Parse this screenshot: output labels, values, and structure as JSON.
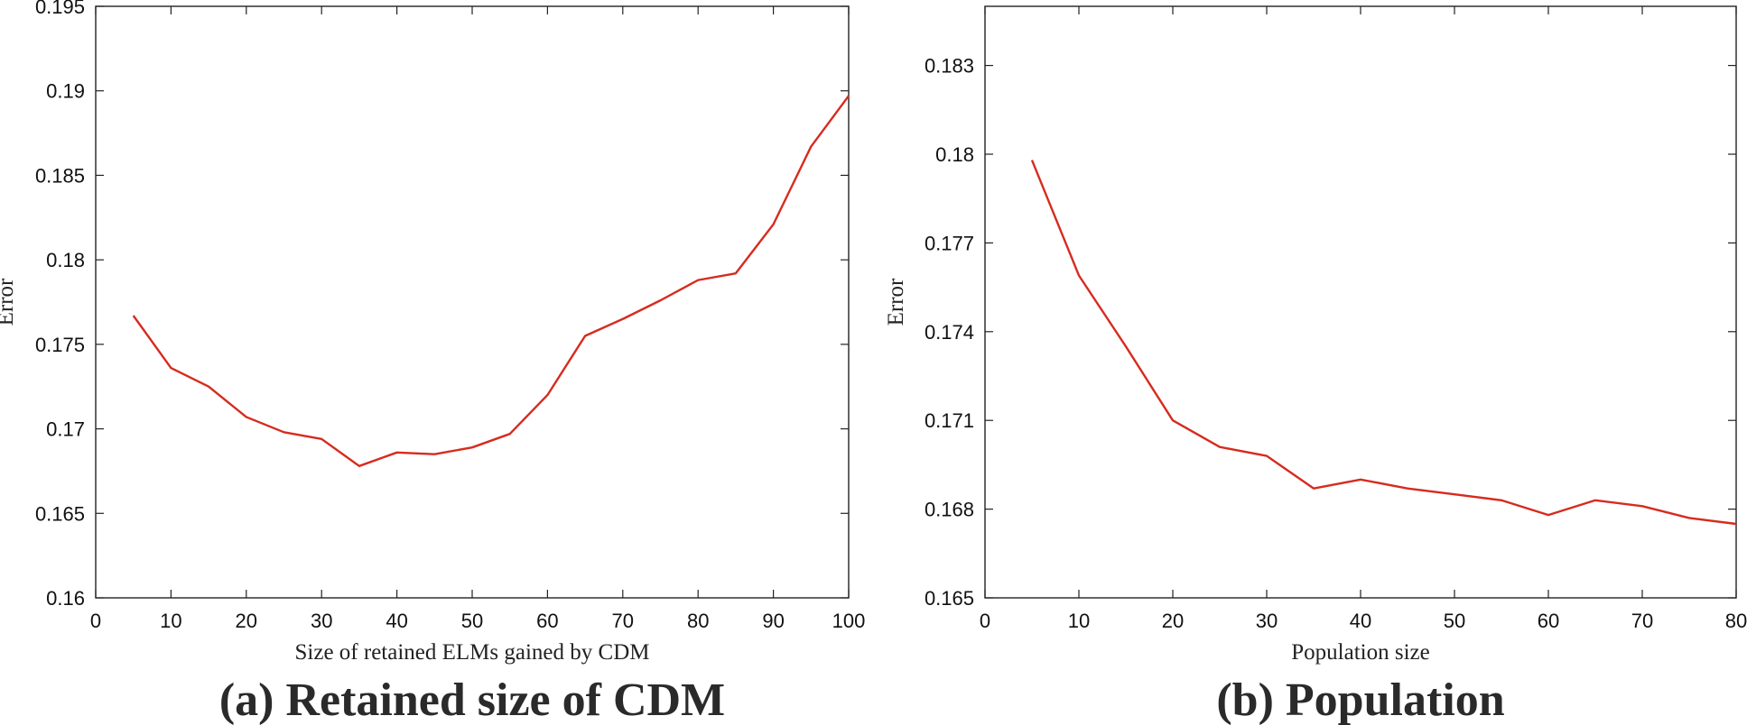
{
  "chart_data": [
    {
      "type": "line",
      "caption": "(a) Retained size of CDM",
      "xlabel": "Size of retained ELMs gained by CDM",
      "ylabel": "Error",
      "xlim": [
        0,
        100
      ],
      "ylim": [
        0.16,
        0.195
      ],
      "xticks": [
        0,
        10,
        20,
        30,
        40,
        50,
        60,
        70,
        80,
        90,
        100
      ],
      "xtick_labels": [
        "0",
        "10",
        "20",
        "30",
        "40",
        "50",
        "60",
        "70",
        "80",
        "90",
        "100"
      ],
      "yticks": [
        0.16,
        0.165,
        0.17,
        0.175,
        0.18,
        0.185,
        0.19,
        0.195
      ],
      "ytick_labels": [
        "0.16",
        "0.165",
        "0.17",
        "0.175",
        "0.18",
        "0.185",
        "0.19",
        "0.195"
      ],
      "grid": false,
      "series": [
        {
          "color": "#d62b1f",
          "x": [
            5,
            10,
            15,
            20,
            25,
            30,
            35,
            40,
            45,
            50,
            55,
            60,
            65,
            70,
            75,
            80,
            85,
            90,
            95,
            100
          ],
          "y": [
            0.1767,
            0.1736,
            0.1725,
            0.1707,
            0.1698,
            0.1694,
            0.1678,
            0.1686,
            0.1685,
            0.1689,
            0.1697,
            0.172,
            0.1755,
            0.1765,
            0.1776,
            0.1788,
            0.1792,
            0.1821,
            0.1867,
            0.1897
          ]
        }
      ]
    },
    {
      "type": "line",
      "caption": "(b) Population",
      "xlabel": "Population size",
      "ylabel": "Error",
      "xlim": [
        0,
        80
      ],
      "ylim": [
        0.165,
        0.185
      ],
      "xticks": [
        0,
        10,
        20,
        30,
        40,
        50,
        60,
        70,
        80
      ],
      "xtick_labels": [
        "0",
        "10",
        "20",
        "30",
        "40",
        "50",
        "60",
        "70",
        "80"
      ],
      "yticks": [
        0.165,
        0.168,
        0.171,
        0.174,
        0.177,
        0.18,
        0.183
      ],
      "ytick_labels": [
        "0.165",
        "0.168",
        "0.171",
        "0.174",
        "0.177",
        "0.18",
        "0.183"
      ],
      "grid": false,
      "series": [
        {
          "color": "#d62b1f",
          "x": [
            5,
            10,
            15,
            20,
            25,
            30,
            35,
            40,
            45,
            50,
            55,
            60,
            65,
            70,
            75,
            80
          ],
          "y": [
            0.1798,
            0.1759,
            0.1735,
            0.171,
            0.1701,
            0.1698,
            0.1687,
            0.169,
            0.1687,
            0.1685,
            0.1683,
            0.1678,
            0.1683,
            0.1681,
            0.1677,
            0.1675
          ]
        }
      ]
    }
  ]
}
